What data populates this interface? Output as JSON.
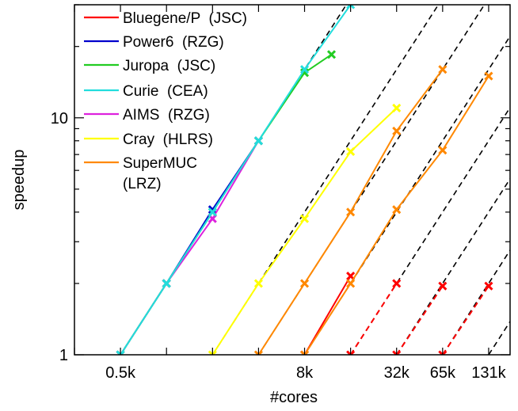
{
  "chart_data": {
    "type": "line",
    "xlabel": "#cores",
    "ylabel": "speedup",
    "xscale": "log2",
    "yscale": "log",
    "xlim": [
      256,
      181000
    ],
    "ylim": [
      1,
      30
    ],
    "x_tick_labels": [
      {
        "value": 512,
        "label": "0.5k"
      },
      {
        "value": 8192,
        "label": "8k"
      },
      {
        "value": 32768,
        "label": "32k"
      },
      {
        "value": 65536,
        "label": "65k"
      },
      {
        "value": 131072,
        "label": "131k"
      }
    ],
    "y_tick_labels": [
      {
        "value": 1,
        "label": "1"
      },
      {
        "value": 10,
        "label": "10"
      }
    ],
    "legend": {
      "position": "top-left",
      "entries": [
        {
          "label": "Bluegene/P  (JSC)",
          "color": "#ff0000"
        },
        {
          "label": "Power6  (RZG)",
          "color": "#0000cc"
        },
        {
          "label": "Juropa  (JSC)",
          "color": "#22cc22"
        },
        {
          "label": "Curie  (CEA)",
          "color": "#22dddd"
        },
        {
          "label": "AIMS  (RZG)",
          "color": "#dd22dd"
        },
        {
          "label": "Cray  (HLRS)",
          "color": "#ffff00"
        },
        {
          "label": "SuperMUC",
          "label2": "(LRZ)",
          "color": "#ff8800"
        }
      ]
    },
    "ideal_scaling_lines": [
      {
        "start_cores": 512
      },
      {
        "start_cores": 2048
      },
      {
        "start_cores": 4096
      },
      {
        "start_cores": 8192
      },
      {
        "start_cores": 16384
      },
      {
        "start_cores": 32768
      },
      {
        "start_cores": 65536
      },
      {
        "start_cores": 131072
      }
    ],
    "series": [
      {
        "color": "#ff0000",
        "marker": "x",
        "dashed": true,
        "points": [
          [
            16384,
            1
          ],
          [
            32768,
            2
          ]
        ]
      },
      {
        "color": "#ff0000",
        "marker": "x",
        "dashed": true,
        "points": [
          [
            32768,
            1
          ],
          [
            65536,
            1.95
          ]
        ]
      },
      {
        "color": "#ff0000",
        "marker": "x",
        "dashed": true,
        "points": [
          [
            65536,
            1
          ],
          [
            131072,
            1.95
          ]
        ]
      },
      {
        "color": "#ff0000",
        "marker": "x",
        "dashed": false,
        "points": [
          [
            8192,
            1
          ],
          [
            16384,
            2.15
          ]
        ]
      },
      {
        "color": "#0000cc",
        "marker": "x",
        "dashed": false,
        "points": [
          [
            512,
            1
          ],
          [
            1024,
            2
          ],
          [
            2048,
            4.1
          ],
          [
            4096,
            8
          ]
        ]
      },
      {
        "color": "#dd22dd",
        "marker": "x",
        "dashed": false,
        "points": [
          [
            512,
            1
          ],
          [
            1024,
            2
          ],
          [
            2048,
            3.75
          ],
          [
            4096,
            8
          ]
        ]
      },
      {
        "color": "#22cc22",
        "marker": "x",
        "dashed": false,
        "points": [
          [
            512,
            1
          ],
          [
            1024,
            2
          ],
          [
            2048,
            4
          ],
          [
            4096,
            8
          ],
          [
            8192,
            15.5
          ],
          [
            12288,
            18.5
          ]
        ]
      },
      {
        "color": "#22dddd",
        "marker": "x",
        "dashed": false,
        "points": [
          [
            512,
            1
          ],
          [
            1024,
            2
          ],
          [
            2048,
            4
          ],
          [
            4096,
            8
          ],
          [
            8192,
            16
          ],
          [
            16384,
            30
          ]
        ]
      },
      {
        "color": "#ffff00",
        "marker": "x",
        "dashed": false,
        "points": [
          [
            2048,
            1
          ],
          [
            4096,
            2
          ],
          [
            8192,
            3.75
          ],
          [
            16384,
            7.2
          ],
          [
            32768,
            11
          ]
        ]
      },
      {
        "color": "#ff8800",
        "marker": "x",
        "dashed": false,
        "points": [
          [
            4096,
            1
          ],
          [
            8192,
            2
          ],
          [
            16384,
            4
          ],
          [
            32768,
            8.8
          ],
          [
            65536,
            16
          ]
        ]
      },
      {
        "color": "#ff8800",
        "marker": "x",
        "dashed": false,
        "points": [
          [
            8192,
            1
          ],
          [
            16384,
            2
          ],
          [
            32768,
            4.1
          ],
          [
            65536,
            7.3
          ],
          [
            131072,
            15
          ]
        ]
      }
    ]
  }
}
